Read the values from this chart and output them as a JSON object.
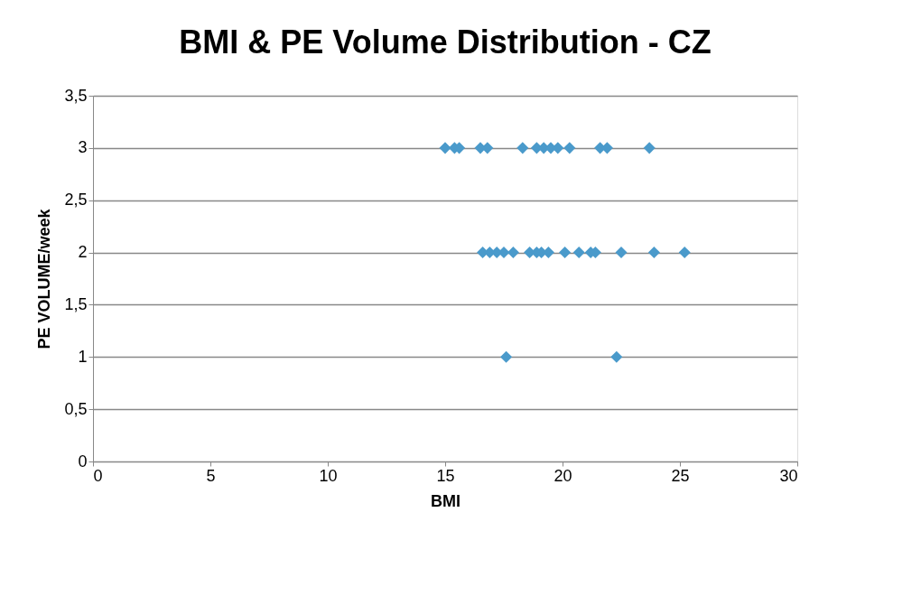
{
  "chart_data": {
    "type": "scatter",
    "title": "BMI & PE Volume Distribution - CZ",
    "xlabel": "BMI",
    "ylabel": "PE VOLUME/week",
    "series": [
      {
        "color": "#4a9acb",
        "x": [
          15.0,
          15.4,
          15.6,
          16.5,
          16.8,
          18.3,
          18.9,
          19.2,
          19.5,
          19.8,
          20.3,
          21.6,
          21.9,
          23.7,
          16.6,
          16.9,
          17.2,
          17.5,
          17.9,
          18.6,
          18.9,
          19.1,
          19.4,
          20.1,
          20.7,
          21.2,
          21.4,
          22.5,
          23.9,
          25.2,
          17.6,
          22.3
        ],
        "values": [
          3,
          3,
          3,
          3,
          3,
          3,
          3,
          3,
          3,
          3,
          3,
          3,
          3,
          3,
          2,
          2,
          2,
          2,
          2,
          2,
          2,
          2,
          2,
          2,
          2,
          2,
          2,
          2,
          2,
          2,
          1,
          1
        ]
      }
    ],
    "xlim": [
      0,
      30
    ],
    "xticks": [
      0,
      5,
      10,
      15,
      20,
      25,
      30
    ],
    "ylim": [
      0,
      3.5
    ],
    "yticks": [
      {
        "value": 0,
        "label": "0"
      },
      {
        "value": 0.5,
        "label": "0,5"
      },
      {
        "value": 1,
        "label": "1"
      },
      {
        "value": 1.5,
        "label": "1,5"
      },
      {
        "value": 2,
        "label": "2"
      },
      {
        "value": 2.5,
        "label": "2,5"
      },
      {
        "value": 3,
        "label": "3"
      },
      {
        "value": 3.5,
        "label": "3,5"
      }
    ],
    "grid": "y",
    "marker": "diamond",
    "legend": false
  }
}
